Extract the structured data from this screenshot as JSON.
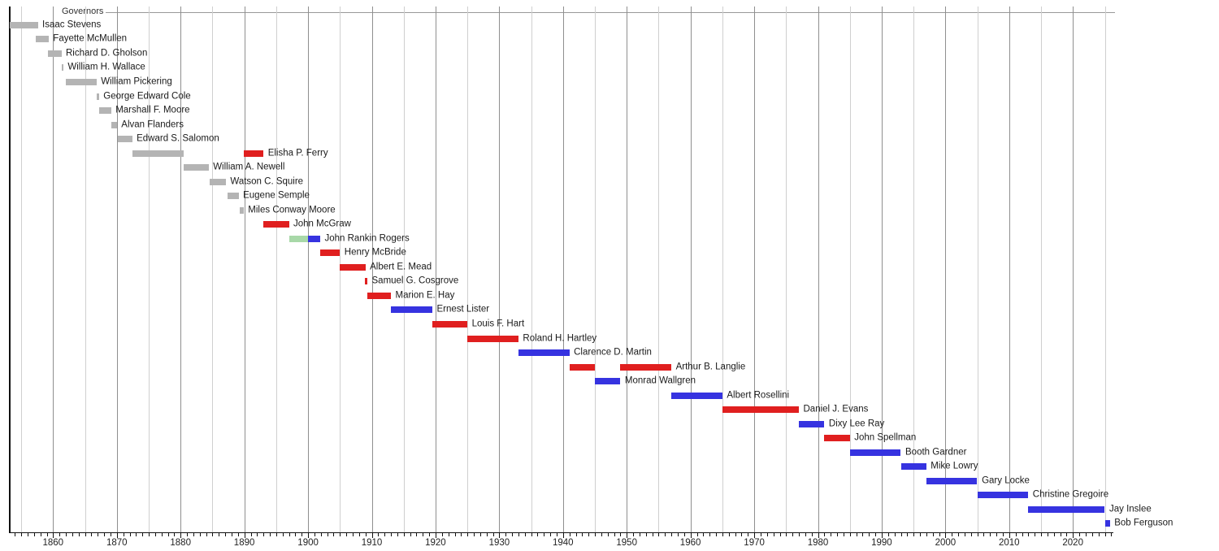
{
  "header": {
    "title": "Governors"
  },
  "colors": {
    "territorial": "#b4b4b4",
    "republican": "#e01f1f",
    "democratic": "#3633e0",
    "populist": "#a8d8a8",
    "grid_minor": "#cfcfcf",
    "grid_major": "#8f8f8f",
    "axis": "#111111",
    "name_text": "#1a1a1a",
    "tick_text": "#222222",
    "title_text": "#333333",
    "title_rule": "#999999"
  },
  "chart_data": {
    "type": "bar",
    "subtype": "gantt-timeline",
    "title": "Governors",
    "xlabel": "",
    "ylabel": "",
    "xlim": [
      1853.2,
      2026.6
    ],
    "grid": "vertical gridlines every 5 years, decades emphasized",
    "legend_position": "none",
    "x_ticks": [
      {
        "year": 1860,
        "label": "1860"
      },
      {
        "year": 1870,
        "label": "1870"
      },
      {
        "year": 1880,
        "label": "1880"
      },
      {
        "year": 1890,
        "label": "1890"
      },
      {
        "year": 1900,
        "label": "1900"
      },
      {
        "year": 1910,
        "label": "1910"
      },
      {
        "year": 1920,
        "label": "1920"
      },
      {
        "year": 1930,
        "label": "1930"
      },
      {
        "year": 1940,
        "label": "1940"
      },
      {
        "year": 1950,
        "label": "1950"
      },
      {
        "year": 1960,
        "label": "1960"
      },
      {
        "year": 1970,
        "label": "1970"
      },
      {
        "year": 1980,
        "label": "1980"
      },
      {
        "year": 1990,
        "label": "1990"
      },
      {
        "year": 2000,
        "label": "2000"
      },
      {
        "year": 2010,
        "label": "2010"
      },
      {
        "year": 2020,
        "label": "2020"
      }
    ],
    "minor_tick_step_years": 1,
    "gridline_step_years": 5,
    "series": [
      {
        "name": "Isaac Stevens",
        "segments": [
          {
            "start": 1853.2,
            "end": 1857.6,
            "party": "territorial"
          }
        ]
      },
      {
        "name": "Fayette McMullen",
        "segments": [
          {
            "start": 1857.3,
            "end": 1859.3,
            "party": "territorial"
          }
        ]
      },
      {
        "name": "Richard D. Gholson",
        "segments": [
          {
            "start": 1859.2,
            "end": 1861.3,
            "party": "territorial"
          }
        ]
      },
      {
        "name": "William H. Wallace",
        "segments": [
          {
            "start": 1861.3,
            "end": 1861.6,
            "party": "territorial"
          }
        ]
      },
      {
        "name": "William Pickering",
        "segments": [
          {
            "start": 1862.0,
            "end": 1866.8,
            "party": "territorial"
          }
        ]
      },
      {
        "name": "George Edward Cole",
        "segments": [
          {
            "start": 1866.8,
            "end": 1867.2,
            "party": "territorial"
          }
        ]
      },
      {
        "name": "Marshall F. Moore",
        "segments": [
          {
            "start": 1867.2,
            "end": 1869.1,
            "party": "territorial"
          }
        ]
      },
      {
        "name": "Alvan Flanders",
        "segments": [
          {
            "start": 1869.1,
            "end": 1870.0,
            "party": "territorial"
          }
        ]
      },
      {
        "name": "Edward S. Salomon",
        "segments": [
          {
            "start": 1870.1,
            "end": 1872.4,
            "party": "territorial"
          }
        ]
      },
      {
        "name": "Elisha P. Ferry",
        "segments": [
          {
            "start": 1872.4,
            "end": 1880.5,
            "party": "territorial"
          },
          {
            "start": 1889.9,
            "end": 1893.0,
            "party": "republican"
          }
        ]
      },
      {
        "name": "William A. Newell",
        "segments": [
          {
            "start": 1880.5,
            "end": 1884.4,
            "party": "territorial"
          }
        ]
      },
      {
        "name": "Watson C. Squire",
        "segments": [
          {
            "start": 1884.6,
            "end": 1887.1,
            "party": "territorial"
          }
        ]
      },
      {
        "name": "Eugene Semple",
        "segments": [
          {
            "start": 1887.3,
            "end": 1889.1,
            "party": "territorial"
          }
        ]
      },
      {
        "name": "Miles Conway Moore",
        "segments": [
          {
            "start": 1889.3,
            "end": 1889.9,
            "party": "territorial"
          }
        ]
      },
      {
        "name": "John McGraw",
        "segments": [
          {
            "start": 1893.0,
            "end": 1897.0,
            "party": "republican"
          }
        ]
      },
      {
        "name": "John Rankin Rogers",
        "segments": [
          {
            "start": 1897.0,
            "end": 1900.0,
            "party": "populist"
          },
          {
            "start": 1900.0,
            "end": 1901.9,
            "party": "democratic"
          }
        ]
      },
      {
        "name": "Henry McBride",
        "segments": [
          {
            "start": 1901.9,
            "end": 1905.0,
            "party": "republican"
          }
        ]
      },
      {
        "name": "Albert E. Mead",
        "segments": [
          {
            "start": 1905.0,
            "end": 1909.0,
            "party": "republican"
          }
        ]
      },
      {
        "name": "Samuel G. Cosgrove",
        "segments": [
          {
            "start": 1908.9,
            "end": 1909.3,
            "party": "republican"
          }
        ]
      },
      {
        "name": "Marion E. Hay",
        "segments": [
          {
            "start": 1909.3,
            "end": 1913.0,
            "party": "republican"
          }
        ]
      },
      {
        "name": "Ernest Lister",
        "segments": [
          {
            "start": 1913.0,
            "end": 1919.5,
            "party": "democratic"
          }
        ]
      },
      {
        "name": "Louis F. Hart",
        "segments": [
          {
            "start": 1919.5,
            "end": 1925.0,
            "party": "republican"
          }
        ]
      },
      {
        "name": "Roland H. Hartley",
        "segments": [
          {
            "start": 1925.0,
            "end": 1933.0,
            "party": "republican"
          }
        ]
      },
      {
        "name": "Clarence D. Martin",
        "segments": [
          {
            "start": 1933.0,
            "end": 1941.0,
            "party": "democratic"
          }
        ]
      },
      {
        "name": "Arthur B. Langlie",
        "segments": [
          {
            "start": 1941.0,
            "end": 1945.0,
            "party": "republican"
          },
          {
            "start": 1949.0,
            "end": 1957.0,
            "party": "republican"
          }
        ]
      },
      {
        "name": "Monrad Wallgren",
        "segments": [
          {
            "start": 1945.0,
            "end": 1949.0,
            "party": "democratic"
          }
        ]
      },
      {
        "name": "Albert Rosellini",
        "segments": [
          {
            "start": 1957.0,
            "end": 1965.0,
            "party": "democratic"
          }
        ]
      },
      {
        "name": "Daniel J. Evans",
        "segments": [
          {
            "start": 1965.0,
            "end": 1977.0,
            "party": "republican"
          }
        ]
      },
      {
        "name": "Dixy Lee Ray",
        "segments": [
          {
            "start": 1977.0,
            "end": 1981.0,
            "party": "democratic"
          }
        ]
      },
      {
        "name": "John Spellman",
        "segments": [
          {
            "start": 1981.0,
            "end": 1985.0,
            "party": "republican"
          }
        ]
      },
      {
        "name": "Booth Gardner",
        "segments": [
          {
            "start": 1985.0,
            "end": 1993.0,
            "party": "democratic"
          }
        ]
      },
      {
        "name": "Mike Lowry",
        "segments": [
          {
            "start": 1993.0,
            "end": 1997.0,
            "party": "democratic"
          }
        ]
      },
      {
        "name": "Gary Locke",
        "segments": [
          {
            "start": 1997.0,
            "end": 2005.0,
            "party": "democratic"
          }
        ]
      },
      {
        "name": "Christine Gregoire",
        "segments": [
          {
            "start": 2005.0,
            "end": 2013.0,
            "party": "democratic"
          }
        ]
      },
      {
        "name": "Jay Inslee",
        "segments": [
          {
            "start": 2013.0,
            "end": 2025.0,
            "party": "democratic"
          }
        ]
      },
      {
        "name": "Bob Ferguson",
        "segments": [
          {
            "start": 2025.0,
            "end": 2025.8,
            "party": "democratic"
          }
        ]
      }
    ]
  }
}
